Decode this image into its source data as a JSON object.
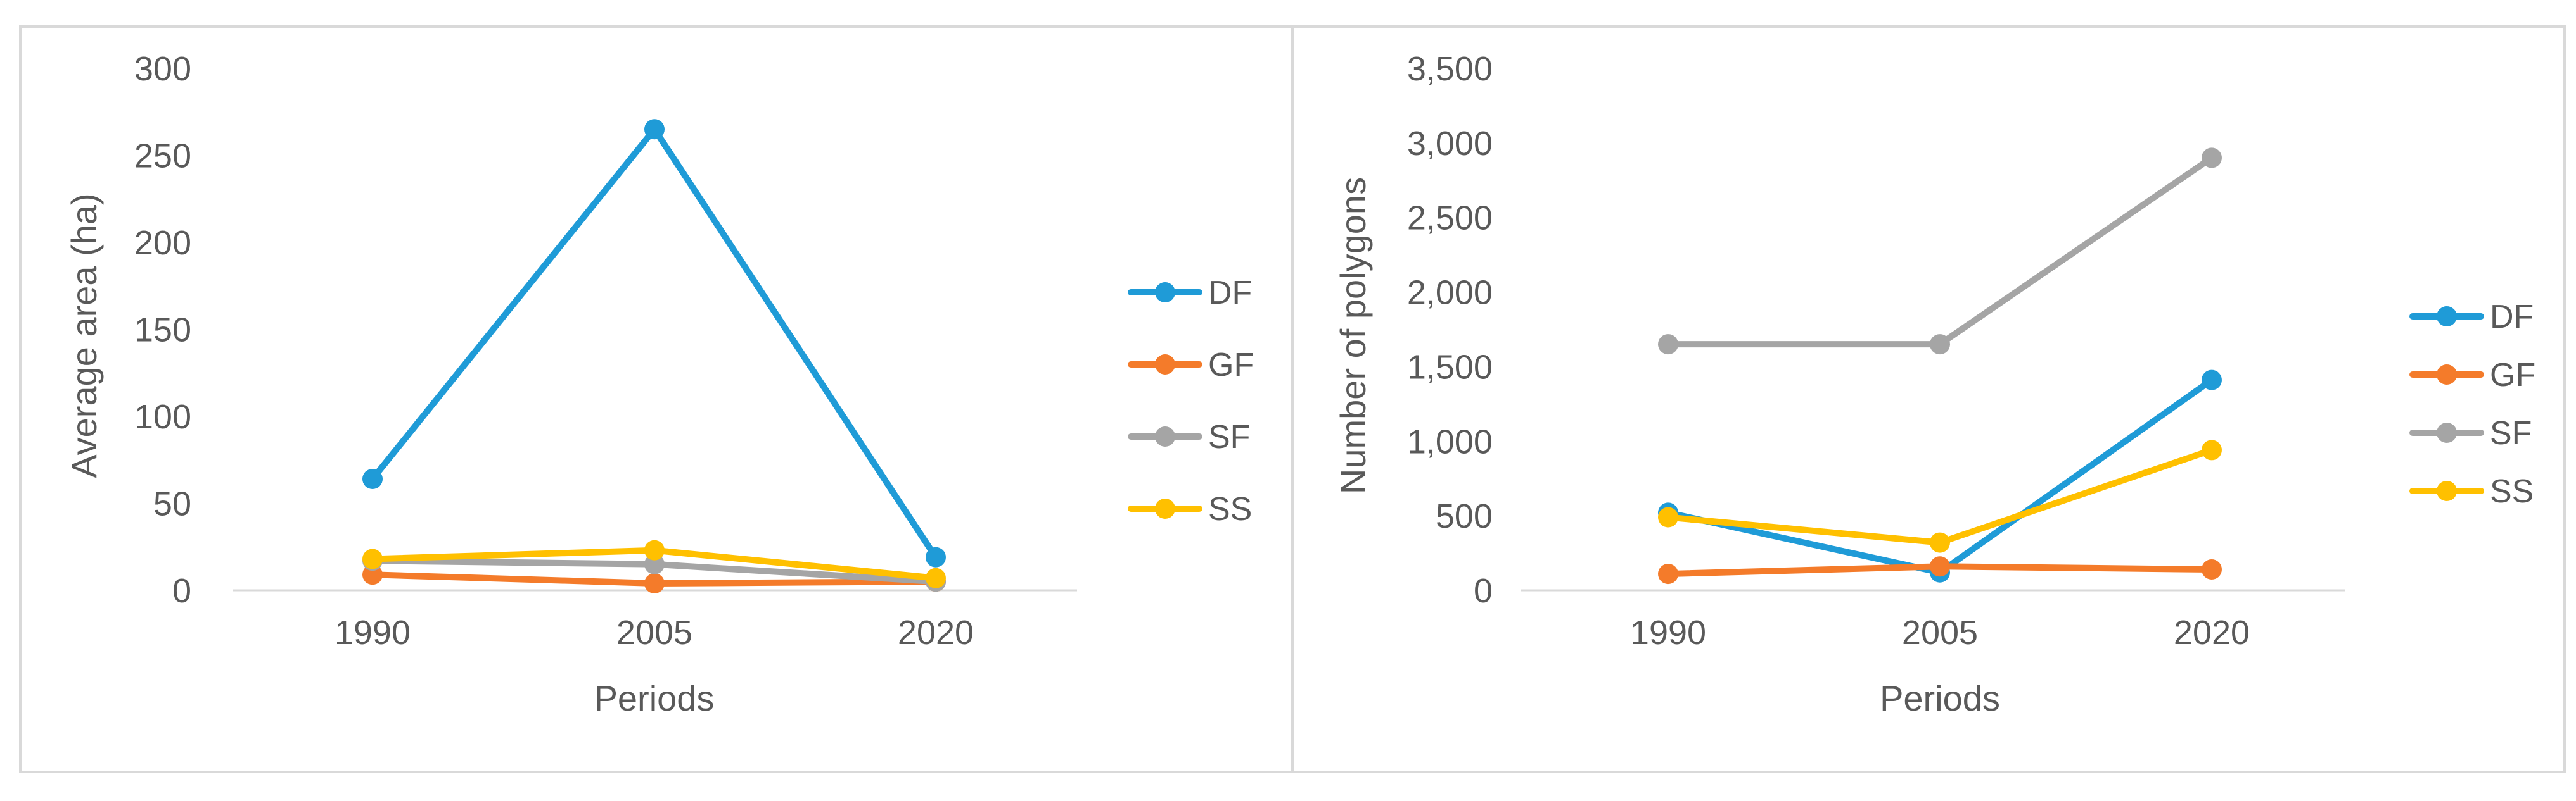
{
  "colors": {
    "DF": "#1f9bd7",
    "GF": "#f47b2a",
    "SF": "#a5a5a5",
    "SS": "#ffc000"
  },
  "chart_data": [
    {
      "type": "line",
      "title": "",
      "xlabel": "Periods",
      "ylabel": "Average area (ha)",
      "categories": [
        "1990",
        "2005",
        "2020"
      ],
      "ylim": [
        0,
        300
      ],
      "yticks": [
        0,
        50,
        100,
        150,
        200,
        250,
        300
      ],
      "ytick_labels": [
        "0",
        "50",
        "100",
        "150",
        "200",
        "250",
        "300"
      ],
      "grid": "bottom-baseline-only",
      "legend": "right",
      "series": [
        {
          "name": "DF",
          "values": [
            64,
            265,
            19
          ]
        },
        {
          "name": "GF",
          "values": [
            9,
            4,
            5
          ]
        },
        {
          "name": "SF",
          "values": [
            17,
            15,
            5
          ]
        },
        {
          "name": "SS",
          "values": [
            18,
            23,
            7
          ]
        }
      ]
    },
    {
      "type": "line",
      "title": "",
      "xlabel": "Periods",
      "ylabel": "Number of polygons",
      "categories": [
        "1990",
        "2005",
        "2020"
      ],
      "ylim": [
        0,
        3500
      ],
      "yticks": [
        0,
        500,
        1000,
        1500,
        2000,
        2500,
        3000,
        3500
      ],
      "ytick_labels": [
        "0",
        "500",
        "1,000",
        "1,500",
        "2,000",
        "2,500",
        "3,000",
        "3,500"
      ],
      "grid": "bottom-baseline-only",
      "legend": "right",
      "series": [
        {
          "name": "DF",
          "values": [
            520,
            120,
            1410
          ]
        },
        {
          "name": "GF",
          "values": [
            110,
            160,
            140
          ]
        },
        {
          "name": "SF",
          "values": [
            1650,
            1650,
            2900
          ]
        },
        {
          "name": "SS",
          "values": [
            490,
            320,
            940
          ]
        }
      ]
    }
  ]
}
